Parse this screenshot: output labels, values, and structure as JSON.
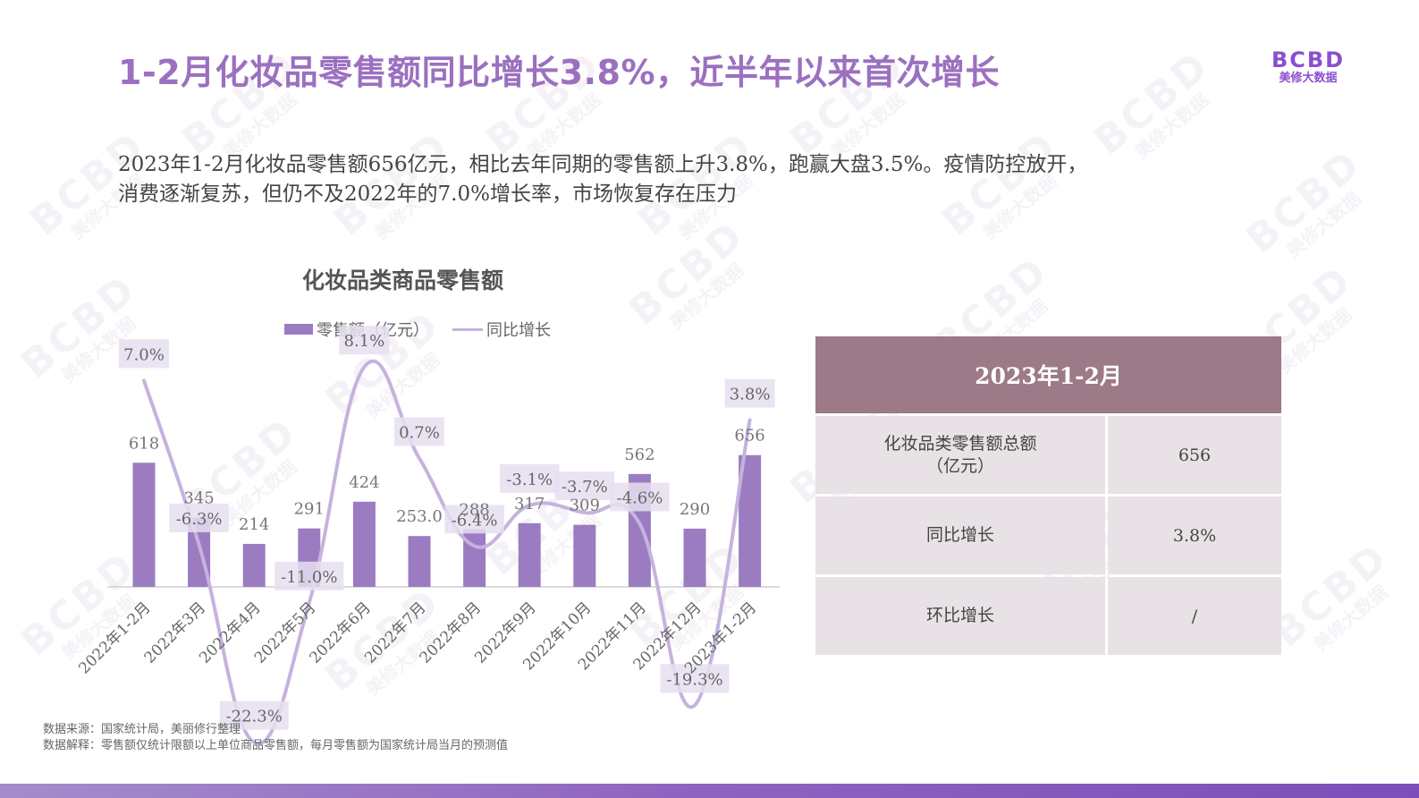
{
  "header": {
    "title": "1-2月化妆品零售额同比增长3.8%，近半年以来首次增长",
    "logo_mark": "BCBD",
    "logo_sub": "美修大数据"
  },
  "intro": {
    "line1": "2023年1-2月化妆品零售额656亿元，相比去年同期的零售额上升3.8%，跑赢大盘3.5%。疫情防控放开，",
    "line2": "消费逐渐复苏，但仍不及2022年的7.0%增长率，市场恢复存在压力"
  },
  "chart_data": {
    "type": "bar+line",
    "title": "化妆品类商品零售额",
    "categories": [
      "2022年1-2月",
      "2022年3月",
      "2022年4月",
      "2022年5月",
      "2022年6月",
      "2022年7月",
      "2022年8月",
      "2022年9月",
      "2022年10月",
      "2022年11月",
      "2022年12月",
      "2023年1-2月"
    ],
    "series": [
      {
        "name": "零售额（亿元）",
        "kind": "bar",
        "color": "#9b7cc1",
        "values": [
          618,
          345,
          214,
          291,
          424,
          253,
          288,
          317,
          309,
          562,
          290,
          656
        ],
        "labels": [
          "618",
          "345",
          "214",
          "291",
          "424",
          "253.0",
          "288",
          "317",
          "309",
          "562",
          "290",
          "656"
        ]
      },
      {
        "name": "同比增长",
        "kind": "line",
        "color": "#c5b3de",
        "values": [
          7.0,
          -6.3,
          -22.3,
          -11.0,
          8.1,
          0.7,
          -6.4,
          -3.1,
          -3.7,
          -4.6,
          -19.3,
          3.8
        ],
        "labels": [
          "7.0%",
          "-6.3%",
          "-22.3%",
          "-11.0%",
          "8.1%",
          "0.7%",
          "-6.4%",
          "-3.1%",
          "-3.7%",
          "-4.6%",
          "-19.3%",
          "3.8%"
        ]
      }
    ],
    "legend_position": "top",
    "grid": false
  },
  "legend": {
    "bar_label": "零售额（亿元）",
    "line_label": "同比增长"
  },
  "table": {
    "header": "2023年1-2月",
    "rows": [
      {
        "label_line1": "化妆品类零售额总额",
        "label_line2": "（亿元）",
        "value": "656"
      },
      {
        "label_line1": "同比增长",
        "label_line2": "",
        "value": "3.8%"
      },
      {
        "label_line1": "环比增长",
        "label_line2": "",
        "value": "/"
      }
    ]
  },
  "footnotes": {
    "source": "数据来源：国家统计局，美丽修行整理",
    "explain": "数据解释：零售额仅统计限额以上单位商品零售额，每月零售额为国家统计局当月的预测值"
  },
  "watermark": {
    "mark": "BCBD",
    "text": "美修大数据"
  }
}
